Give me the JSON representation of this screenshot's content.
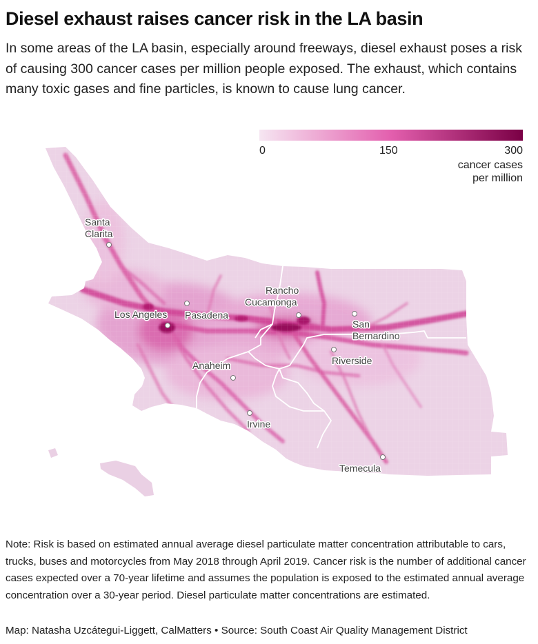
{
  "title": "Diesel exhaust raises cancer risk in the LA basin",
  "subtitle": "In some areas of the LA basin, especially around freeways, diesel exhaust poses a risk of causing 300 cancer cases per million people exposed. The exhaust, which contains many toxic gases and fine particles, is known to cause lung cancer.",
  "legend": {
    "ticks": [
      "0",
      "150",
      "300"
    ],
    "min": 0,
    "mid": 150,
    "max": 300,
    "unit_line1": "cancer cases",
    "unit_line2": "per million",
    "colors": [
      "#f6e6f2",
      "#e35fae",
      "#7a0045"
    ]
  },
  "cities": [
    {
      "name_lines": [
        "Santa",
        "Clarita"
      ]
    },
    {
      "name_lines": [
        "Rancho",
        "Cucamonga"
      ]
    },
    {
      "name_lines": [
        "Los Angeles"
      ]
    },
    {
      "name_lines": [
        "Pasadena"
      ]
    },
    {
      "name_lines": [
        "San",
        "Bernardino"
      ]
    },
    {
      "name_lines": [
        "Riverside"
      ]
    },
    {
      "name_lines": [
        "Anaheim"
      ]
    },
    {
      "name_lines": [
        "Irvine"
      ]
    },
    {
      "name_lines": [
        "Temecula"
      ]
    }
  ],
  "note": "Note: Risk is based on estimated annual average diesel particulate matter concentration attributable to cars, trucks, buses and motorcycles from May 2018 through April 2019. Cancer risk is the number of additional cancer cases expected over a 70-year lifetime and assumes the population is exposed to the estimated annual average concentration over a 30-year period. Diesel particulate matter concentrations are estimated.",
  "credit": "Map: Natasha Uzcátegui-Liggett, CalMatters • Source: South Coast Air Quality Management District"
}
